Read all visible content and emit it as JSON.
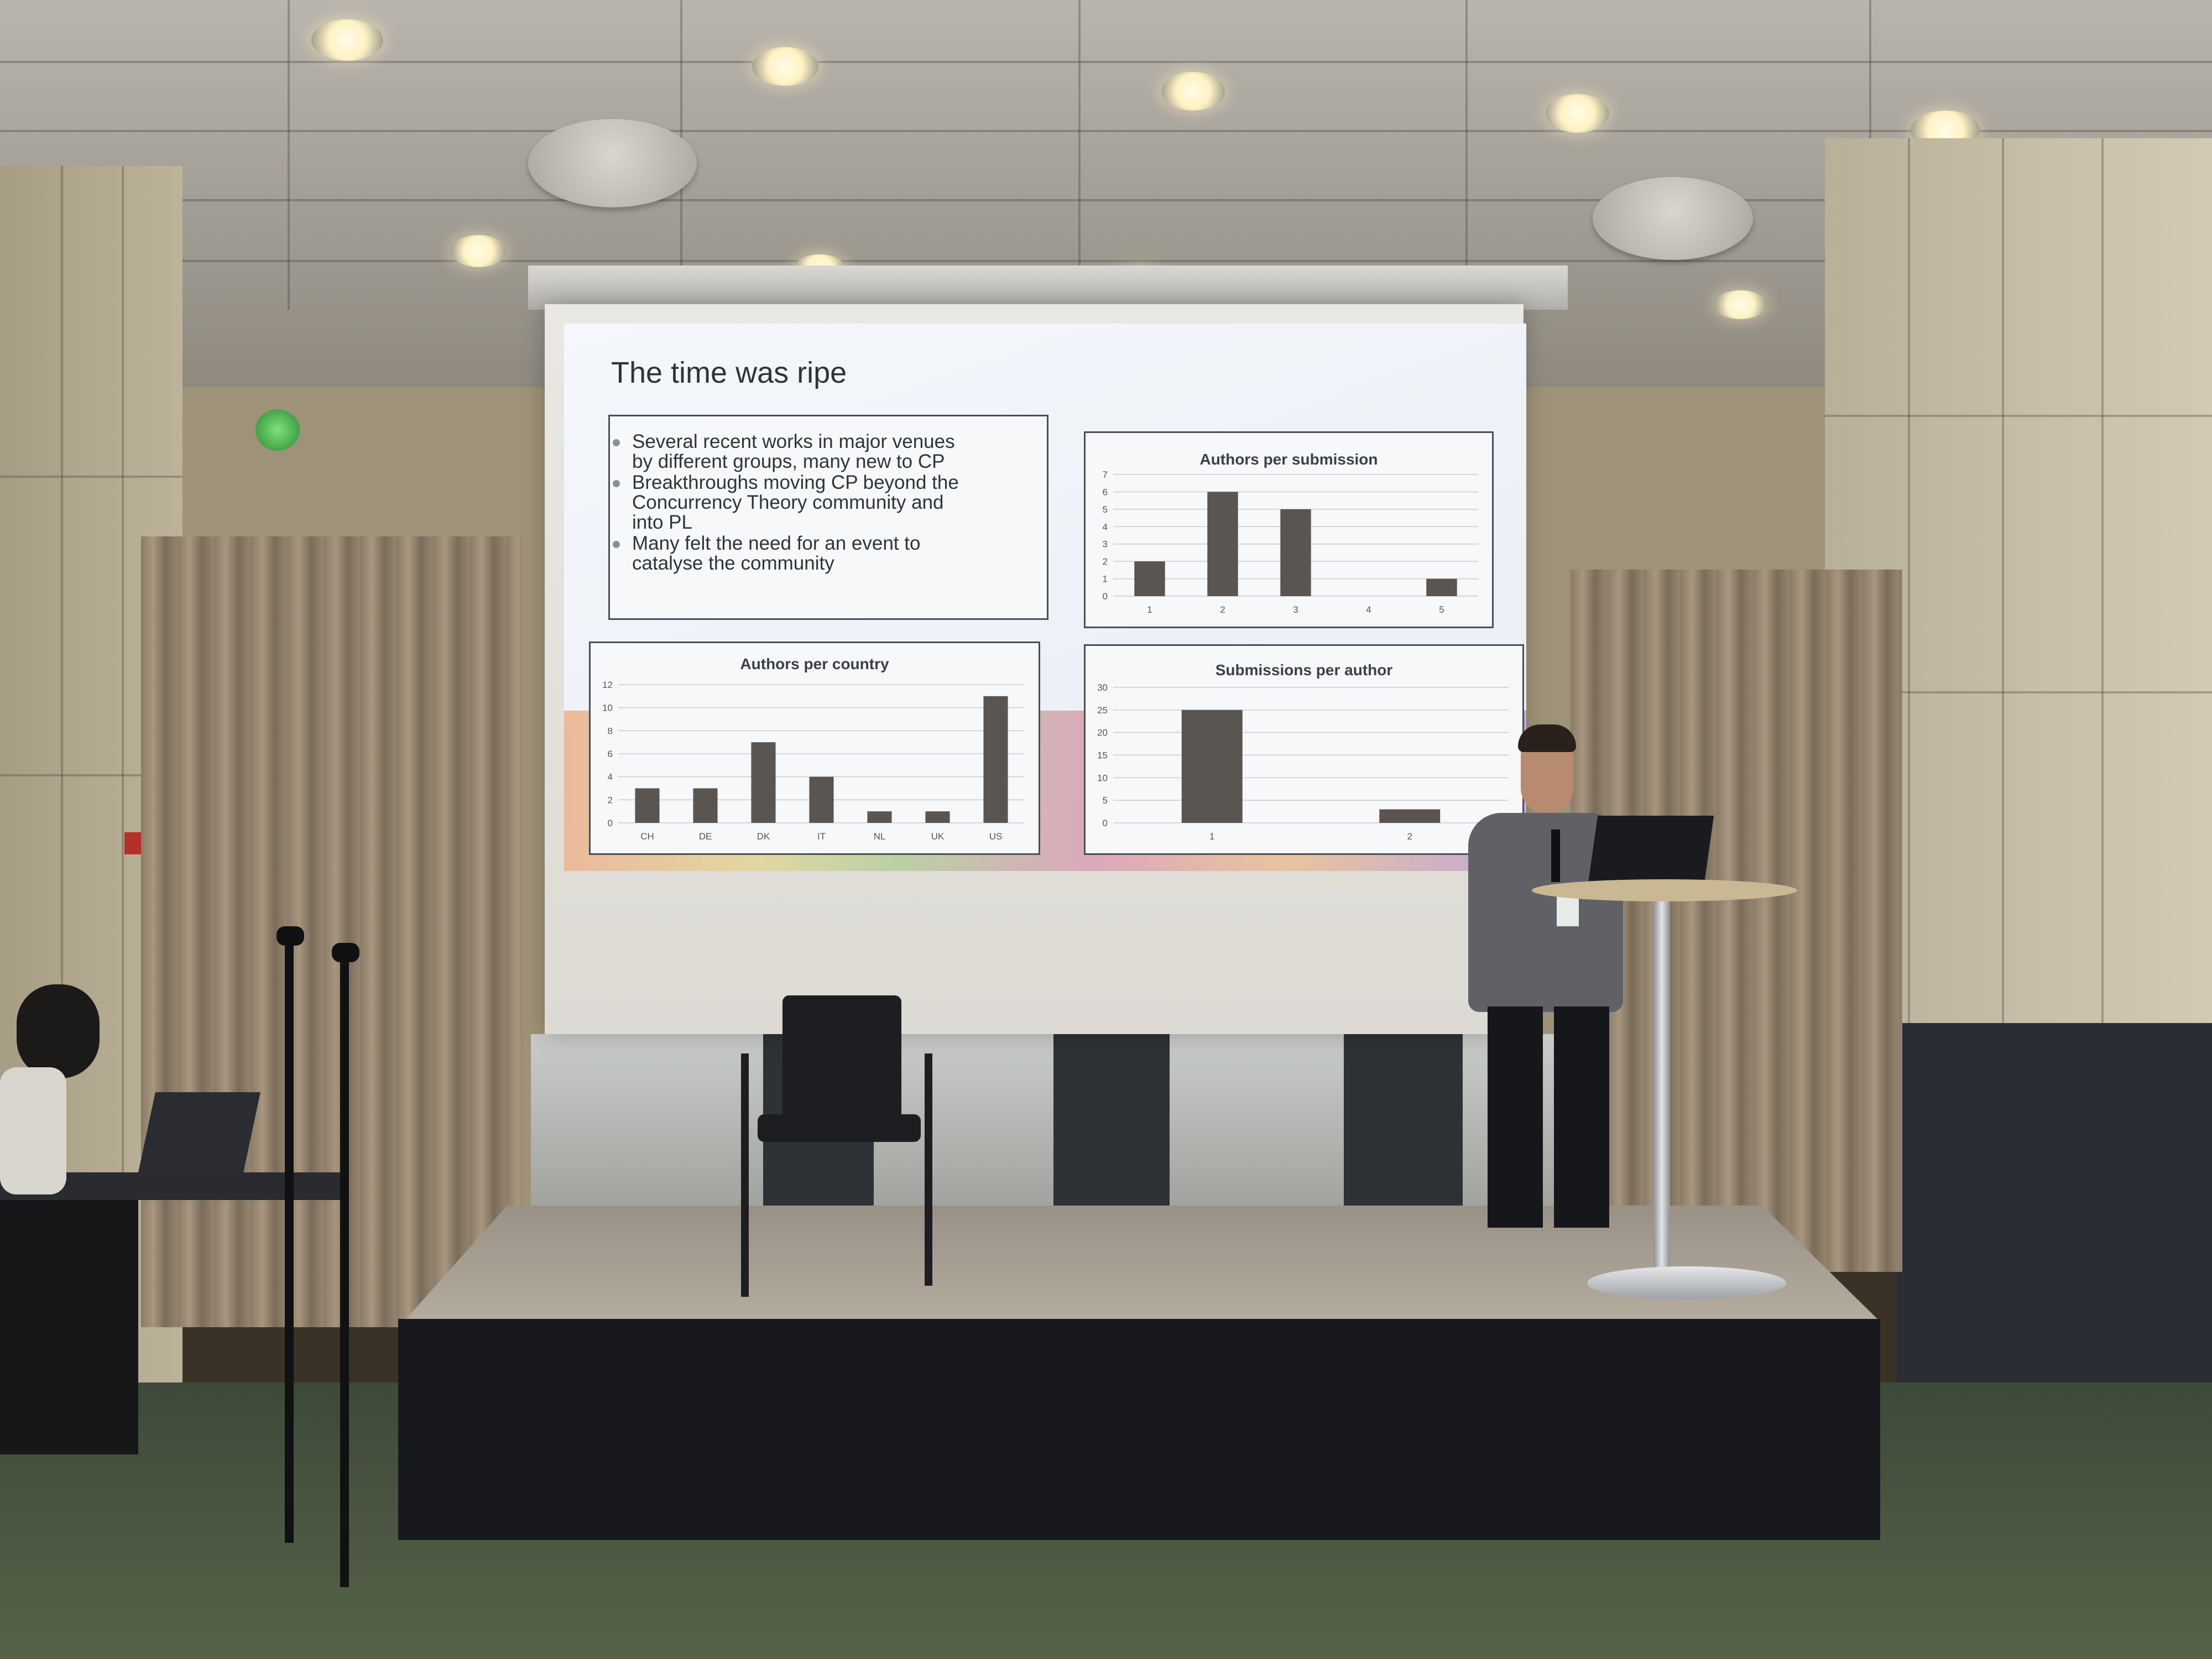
{
  "slide": {
    "title": "The time was ripe",
    "bullets": [
      {
        "text_lines": [
          "Several recent works in major venues",
          "by different groups, many new to CP"
        ]
      },
      {
        "text_lines": [
          "Breakthroughs moving CP beyond the",
          "Concurrency Theory community and",
          "into PL"
        ]
      },
      {
        "text_lines": [
          "Many felt the need for an event to",
          "catalyse the community"
        ]
      }
    ]
  },
  "chart_data": [
    {
      "type": "bar",
      "title": "Authors per submission",
      "categories": [
        "1",
        "2",
        "3",
        "4",
        "5"
      ],
      "values": [
        2,
        6,
        5,
        0,
        1
      ],
      "ylim": [
        0,
        7
      ],
      "yticks": [
        "0",
        "1",
        "2",
        "3",
        "4",
        "5",
        "6",
        "7"
      ],
      "grid": true
    },
    {
      "type": "bar",
      "title": "Authors per country",
      "categories": [
        "CH",
        "DE",
        "DK",
        "IT",
        "NL",
        "UK",
        "US"
      ],
      "values": [
        3,
        3,
        7,
        4,
        1,
        1,
        11
      ],
      "ylim": [
        0,
        12
      ],
      "yticks": [
        "0",
        "2",
        "4",
        "6",
        "8",
        "10",
        "12"
      ],
      "grid": true
    },
    {
      "type": "bar",
      "title": "Submissions per author",
      "categories": [
        "1",
        "2"
      ],
      "values": [
        25,
        3
      ],
      "ylim": [
        0,
        30
      ],
      "yticks": [
        "0",
        "5",
        "10",
        "15",
        "20",
        "25",
        "30"
      ],
      "grid": true
    }
  ],
  "colors": {
    "bar": "#5a5551",
    "slide_bg": "#eef2f8",
    "stage": "#17191d",
    "curtain": "#8a7b68"
  }
}
